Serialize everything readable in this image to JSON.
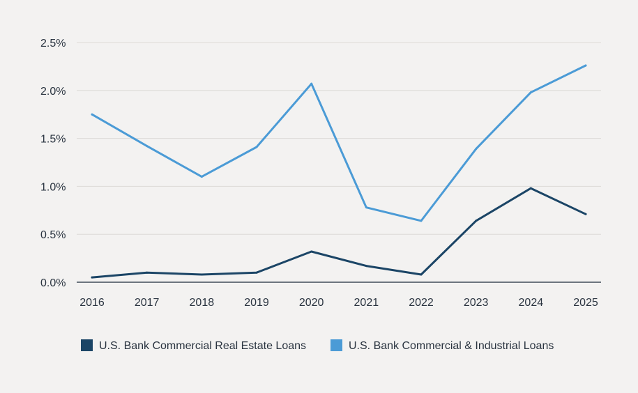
{
  "chart_data": {
    "type": "line",
    "title": "",
    "xlabel": "",
    "ylabel": "",
    "x": [
      "2016",
      "2017",
      "2018",
      "2019",
      "2020",
      "2021",
      "2022",
      "2023",
      "2024",
      "2025"
    ],
    "ylim": [
      0,
      2.5
    ],
    "yticks": [
      0,
      0.5,
      1.0,
      1.5,
      2.0,
      2.5
    ],
    "ytick_labels": [
      "0.0%",
      "0.5%",
      "1.0%",
      "1.5%",
      "2.0%",
      "2.5%"
    ],
    "grid": true,
    "legend_position": "bottom-left",
    "series": [
      {
        "name": "U.S. Bank Commercial Real Estate Loans",
        "color": "#1b4566",
        "values": [
          0.05,
          0.1,
          0.08,
          0.1,
          0.32,
          0.17,
          0.08,
          0.64,
          0.98,
          0.71
        ]
      },
      {
        "name": "U.S. Bank Commercial & Industrial Loans",
        "color": "#4b9bd6",
        "values": [
          1.75,
          1.42,
          1.1,
          1.41,
          2.07,
          0.78,
          0.64,
          1.39,
          1.98,
          2.26
        ]
      }
    ]
  }
}
